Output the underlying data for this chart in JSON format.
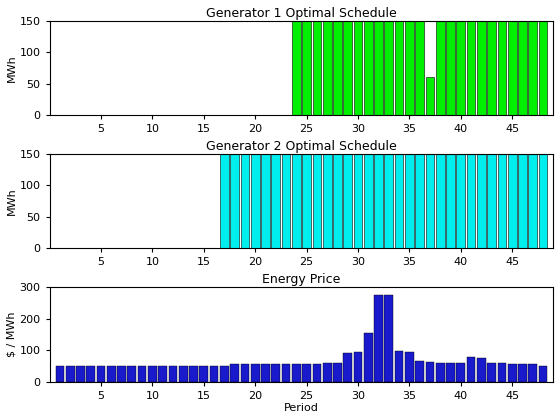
{
  "n_periods": 48,
  "gen1_values": [
    0,
    0,
    0,
    0,
    0,
    0,
    0,
    0,
    0,
    0,
    0,
    0,
    0,
    0,
    0,
    0,
    0,
    0,
    0,
    0,
    0,
    0,
    0,
    150,
    150,
    150,
    150,
    150,
    150,
    150,
    150,
    150,
    150,
    150,
    150,
    150,
    60,
    150,
    150,
    150,
    150,
    150,
    150,
    150,
    150,
    150,
    150,
    150
  ],
  "gen2_values": [
    0,
    0,
    0,
    0,
    0,
    0,
    0,
    0,
    0,
    0,
    0,
    0,
    0,
    0,
    0,
    0,
    150,
    150,
    150,
    150,
    150,
    150,
    150,
    150,
    150,
    150,
    150,
    150,
    150,
    150,
    150,
    150,
    150,
    150,
    150,
    150,
    150,
    150,
    150,
    150,
    150,
    150,
    150,
    150,
    150,
    150,
    150,
    150
  ],
  "price_values": [
    50,
    50,
    50,
    48,
    48,
    48,
    48,
    48,
    48,
    48,
    48,
    48,
    48,
    50,
    50,
    50,
    50,
    55,
    55,
    55,
    55,
    55,
    55,
    55,
    55,
    55,
    58,
    58,
    90,
    95,
    155,
    275,
    275,
    98,
    95,
    65,
    62,
    58,
    58,
    58,
    78,
    75,
    60,
    58,
    55,
    55,
    55,
    50
  ],
  "gen1_color": "#00ee00",
  "gen2_color": "#00eeee",
  "price_color": "#1a1acd",
  "gen1_title": "Generator 1 Optimal Schedule",
  "gen2_title": "Generator 2 Optimal Schedule",
  "price_title": "Energy Price",
  "ylabel_mwh": "MWh",
  "ylabel_price": "$ / MWh",
  "xlabel_price": "Period",
  "gen1_ylim": [
    0,
    150
  ],
  "gen2_ylim": [
    0,
    150
  ],
  "price_ylim": [
    0,
    300
  ],
  "yticks_mwh": [
    0,
    50,
    100,
    150
  ],
  "yticks_price": [
    0,
    100,
    200,
    300
  ],
  "xtick_vals": [
    5,
    10,
    15,
    20,
    25,
    30,
    35,
    40,
    45
  ],
  "xtick_labels": [
    "5",
    "10",
    "15",
    "20",
    "25",
    "30",
    "35",
    "40",
    "45"
  ]
}
